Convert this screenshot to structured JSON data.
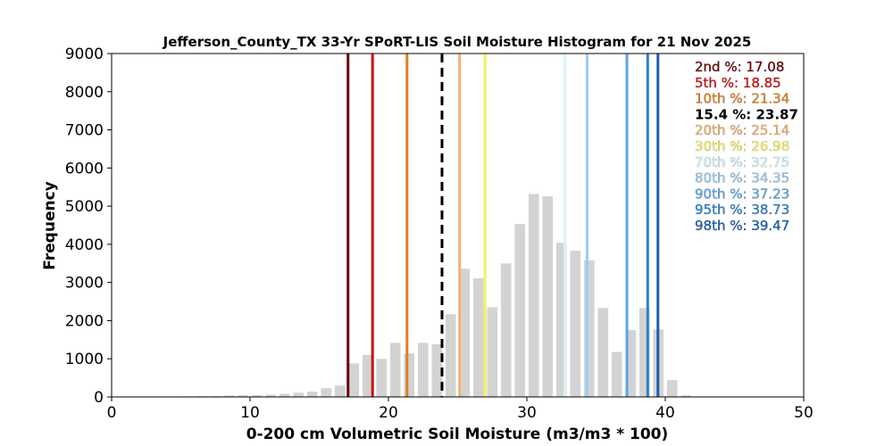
{
  "chart_data": {
    "type": "bar",
    "title": "Jefferson_County_TX 33-Yr SPoRT-LIS Soil Moisture Histogram for 21 Nov 2025",
    "xlabel": "0-200 cm Volumetric Soil Moisture (m3/m3 * 100)",
    "ylabel": "Frequency",
    "xlim": [
      0,
      50
    ],
    "ylim": [
      0,
      9000
    ],
    "x_ticks": [
      "0",
      "10",
      "20",
      "30",
      "40",
      "50"
    ],
    "y_ticks": [
      "0",
      "1000",
      "2000",
      "3000",
      "4000",
      "5000",
      "6000",
      "7000",
      "8000",
      "9000"
    ],
    "bar_color": "#d3d3d3",
    "bars": [
      {
        "x": 2.5,
        "value": 10
      },
      {
        "x": 5.5,
        "value": 15
      },
      {
        "x": 6.5,
        "value": 20
      },
      {
        "x": 7.5,
        "value": 25
      },
      {
        "x": 8.5,
        "value": 40
      },
      {
        "x": 9.5,
        "value": 45
      },
      {
        "x": 10.5,
        "value": 50
      },
      {
        "x": 11.5,
        "value": 60
      },
      {
        "x": 12.5,
        "value": 80
      },
      {
        "x": 13.5,
        "value": 110
      },
      {
        "x": 14.5,
        "value": 140
      },
      {
        "x": 15.5,
        "value": 230
      },
      {
        "x": 16.5,
        "value": 300
      },
      {
        "x": 17.5,
        "value": 880
      },
      {
        "x": 18.5,
        "value": 1100
      },
      {
        "x": 19.5,
        "value": 1000
      },
      {
        "x": 20.5,
        "value": 1420
      },
      {
        "x": 21.5,
        "value": 1140
      },
      {
        "x": 22.5,
        "value": 1420
      },
      {
        "x": 23.5,
        "value": 1380
      },
      {
        "x": 24.5,
        "value": 2170
      },
      {
        "x": 25.5,
        "value": 3360
      },
      {
        "x": 26.5,
        "value": 3110
      },
      {
        "x": 27.5,
        "value": 2350
      },
      {
        "x": 28.5,
        "value": 3500
      },
      {
        "x": 29.5,
        "value": 4530
      },
      {
        "x": 30.5,
        "value": 5320
      },
      {
        "x": 31.5,
        "value": 5260
      },
      {
        "x": 32.5,
        "value": 4040
      },
      {
        "x": 33.5,
        "value": 3830
      },
      {
        "x": 34.5,
        "value": 3580
      },
      {
        "x": 35.5,
        "value": 2330
      },
      {
        "x": 36.5,
        "value": 1180
      },
      {
        "x": 37.5,
        "value": 1750
      },
      {
        "x": 38.5,
        "value": 2330
      },
      {
        "x": 39.5,
        "value": 1770
      },
      {
        "x": 40.5,
        "value": 440
      },
      {
        "x": 41.5,
        "value": 40
      }
    ],
    "percentiles": [
      {
        "label": "2nd %: 17.08",
        "value": 17.08,
        "color": "#6b0000",
        "dashed": false
      },
      {
        "label": "5th %: 18.85",
        "value": 18.85,
        "color": "#cc1111",
        "dashed": false
      },
      {
        "label": "10th %: 21.34",
        "value": 21.34,
        "color": "#e08020",
        "dashed": false
      },
      {
        "label": "15.4 %: 23.87",
        "value": 23.87,
        "color": "#000000",
        "dashed": true
      },
      {
        "label": "20th %: 25.14",
        "value": 25.14,
        "color": "#f4b070",
        "dashed": false
      },
      {
        "label": "30th %: 26.98",
        "value": 26.98,
        "color": "#f5f060",
        "dashed": false
      },
      {
        "label": "70th %: 32.75",
        "value": 32.75,
        "color": "#d6f4f8",
        "dashed": false
      },
      {
        "label": "80th %: 34.35",
        "value": 34.35,
        "color": "#9ccbf0",
        "dashed": false
      },
      {
        "label": "90th %: 37.23",
        "value": 37.23,
        "color": "#5aa6e8",
        "dashed": false
      },
      {
        "label": "95th %: 38.73",
        "value": 38.73,
        "color": "#2c7fd0",
        "dashed": false
      },
      {
        "label": "98th %: 39.47",
        "value": 39.47,
        "color": "#1c5cb4",
        "dashed": false
      }
    ],
    "legend_placement": "top-right",
    "grid": false
  }
}
